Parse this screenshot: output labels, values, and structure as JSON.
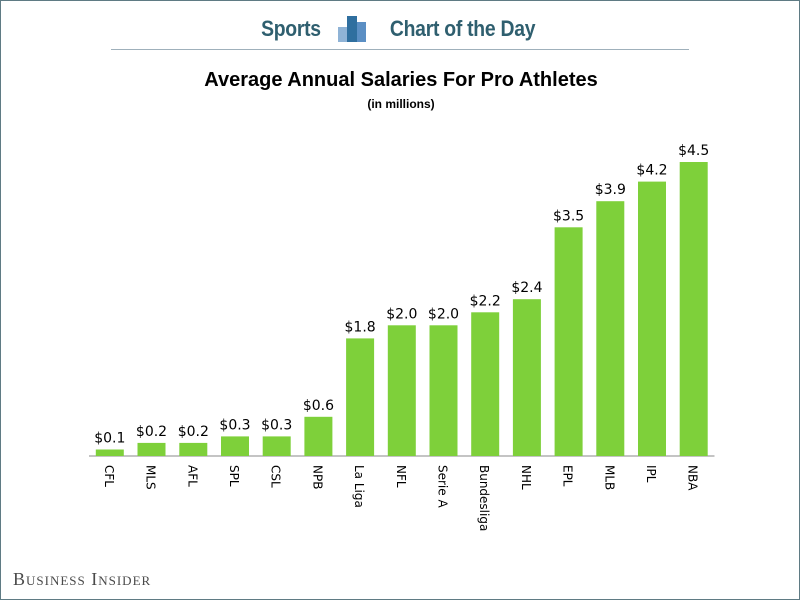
{
  "header": {
    "left_word": "Sports",
    "right_word": "Chart of the Day"
  },
  "footer": {
    "brand": "Business Insider"
  },
  "colors": {
    "bar": "#7ed03a",
    "header_text": "#2f5f6f"
  },
  "chart_data": {
    "type": "bar",
    "title": "Average Annual Salaries For Pro Athletes",
    "subtitle": "(in millions)",
    "xlabel": "",
    "ylabel": "",
    "ylim": [
      0,
      4.5
    ],
    "grid": false,
    "legend": "none",
    "categories": [
      "CFL",
      "MLS",
      "AFL",
      "SPL",
      "CSL",
      "NPB",
      "La Liga",
      "NFL",
      "Serie A",
      "Bundesliga",
      "NHL",
      "EPL",
      "MLB",
      "IPL",
      "NBA"
    ],
    "values": [
      0.1,
      0.2,
      0.2,
      0.3,
      0.3,
      0.6,
      1.8,
      2.0,
      2.0,
      2.2,
      2.4,
      3.5,
      3.9,
      4.2,
      4.5
    ],
    "data_labels": [
      "$0.1",
      "$0.2",
      "$0.2",
      "$0.3",
      "$0.3",
      "$0.6",
      "$1.8",
      "$2.0",
      "$2.0",
      "$2.2",
      "$2.4",
      "$3.5",
      "$3.9",
      "$4.2",
      "$4.5"
    ]
  }
}
